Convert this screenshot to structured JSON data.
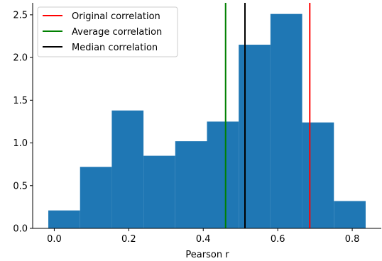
{
  "chart_data": {
    "type": "bar",
    "histogram": true,
    "title": "",
    "xlabel": "Pearson r",
    "ylabel": "",
    "bin_edges": [
      -0.016,
      0.0692,
      0.1544,
      0.2396,
      0.3248,
      0.41,
      0.4952,
      0.5804,
      0.6656,
      0.7508,
      0.836
    ],
    "values": [
      0.21,
      0.72,
      1.38,
      0.85,
      1.02,
      1.25,
      2.15,
      2.51,
      1.24,
      0.32
    ],
    "bar_color": "#1f77b4",
    "xlim": [
      -0.058,
      0.878
    ],
    "ylim": [
      0,
      2.64
    ],
    "xticks": [
      0.0,
      0.2,
      0.4,
      0.6,
      0.8
    ],
    "xtick_labels": [
      "0.0",
      "0.2",
      "0.4",
      "0.6",
      "0.8"
    ],
    "yticks": [
      0.0,
      0.5,
      1.0,
      1.5,
      2.0,
      2.5
    ],
    "ytick_labels": [
      "0.0",
      "0.5",
      "1.0",
      "1.5",
      "2.0",
      "2.5"
    ],
    "vlines": [
      {
        "name": "Original correlation",
        "x": 0.686,
        "color": "#ff0000"
      },
      {
        "name": "Average correlation",
        "x": 0.46,
        "color": "#008000"
      },
      {
        "name": "Median correlation",
        "x": 0.512,
        "color": "#000000"
      }
    ],
    "legend": {
      "placement": "top-left",
      "entries": [
        "Original correlation",
        "Average correlation",
        "Median correlation"
      ]
    },
    "grid": false,
    "spines": [
      "left",
      "bottom"
    ]
  }
}
